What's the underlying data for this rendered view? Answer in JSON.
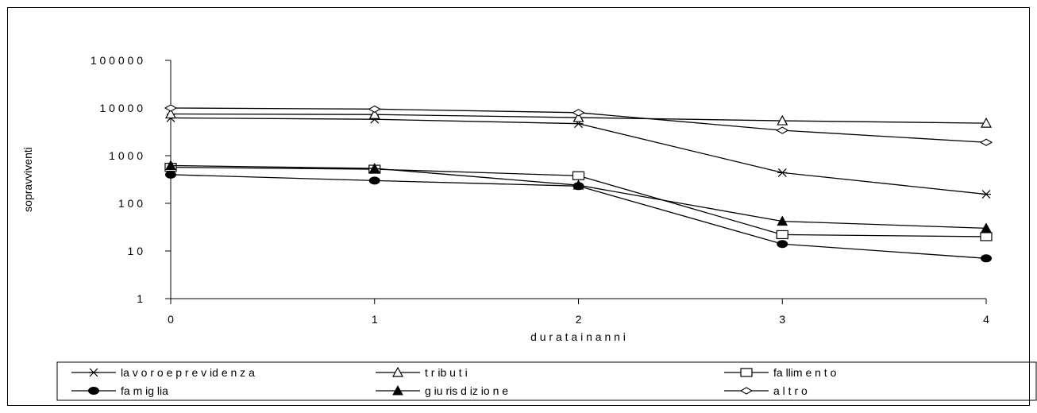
{
  "chart_data": {
    "type": "line",
    "ylabel": "sopravviventi",
    "xlabel": "d u r a t a   i n   a n n i",
    "y_scale": "log",
    "ylim": [
      1,
      100000
    ],
    "y_ticks": [
      {
        "value": 1,
        "label": "1"
      },
      {
        "value": 10,
        "label": "1 0"
      },
      {
        "value": 100,
        "label": "1 0 0"
      },
      {
        "value": 1000,
        "label": "1 0 0 0"
      },
      {
        "value": 10000,
        "label": "1 0 0 0 0"
      },
      {
        "value": 100000,
        "label": "1 0 0 0 0 0"
      }
    ],
    "x": [
      0,
      1,
      2,
      3,
      4
    ],
    "x_tick_labels": [
      "0",
      "1",
      "2",
      "3",
      "4"
    ],
    "grid": false,
    "legend_position": "bottom",
    "series": [
      {
        "name": "la v o r o   e   p r e v id e n z a",
        "marker": "star",
        "values": [
          6200,
          5800,
          4700,
          440,
          155
        ]
      },
      {
        "name": "t r ib u t i",
        "marker": "triangle-open",
        "values": [
          7500,
          7300,
          6300,
          5400,
          4800
        ]
      },
      {
        "name": "fa llim  e n t o",
        "marker": "square-open",
        "values": [
          570,
          520,
          380,
          22,
          20
        ]
      },
      {
        "name": "fa m  ig lia",
        "marker": "circle-filled",
        "values": [
          400,
          300,
          230,
          14,
          7
        ]
      },
      {
        "name": "g iu ris d iz io n e",
        "marker": "triangle-filled",
        "values": [
          620,
          540,
          240,
          42,
          30
        ]
      },
      {
        "name": "a l t r o",
        "marker": "diamond-open",
        "values": [
          10000,
          9500,
          8000,
          3400,
          1900
        ]
      }
    ]
  }
}
